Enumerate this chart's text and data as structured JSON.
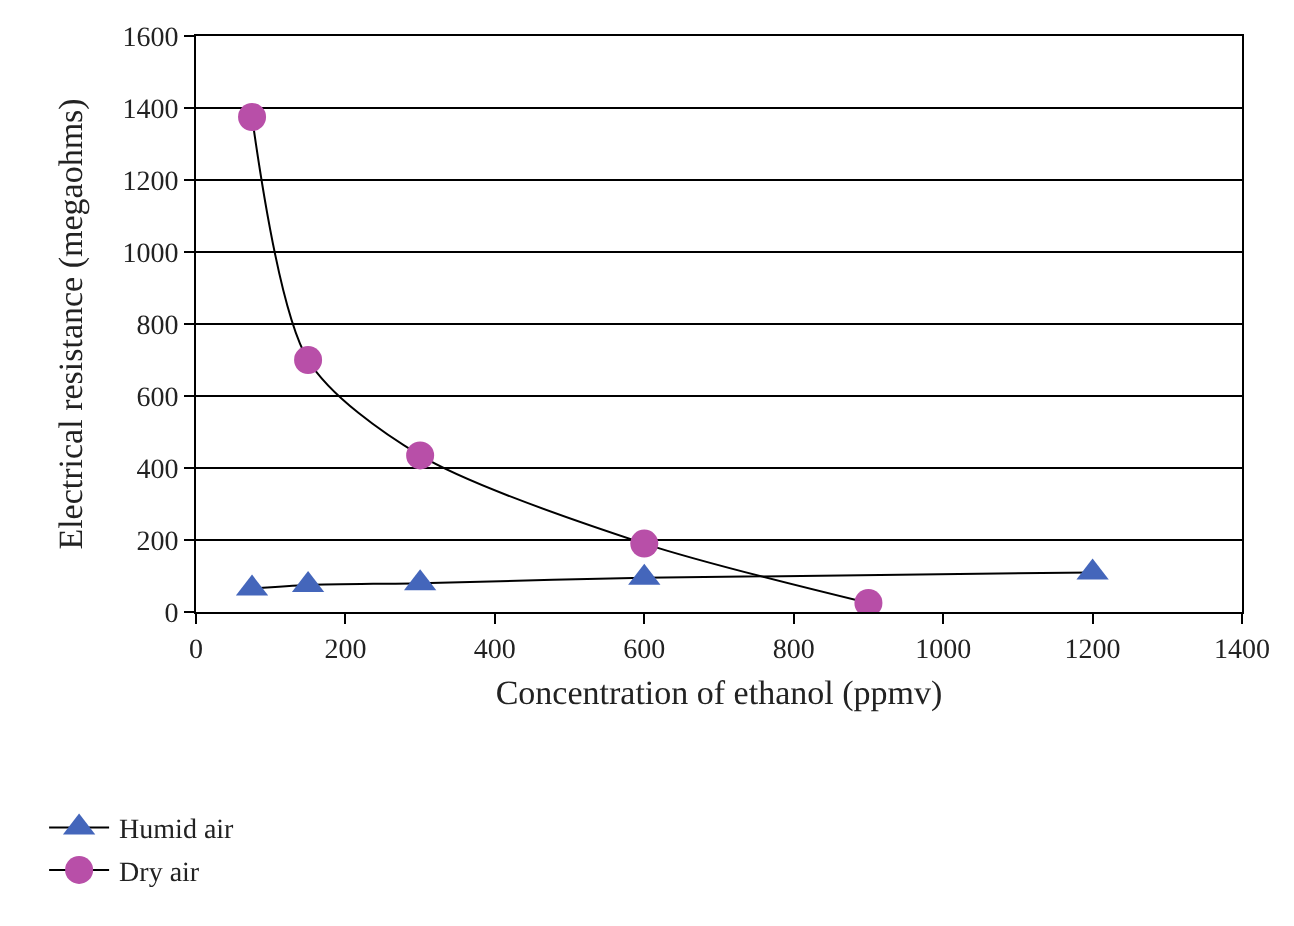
{
  "chart_data": {
    "type": "line",
    "xlabel": "Concentration of ethanol (ppmv)",
    "ylabel": "Electrical resistance (megaohms)",
    "series": [
      {
        "name": "Humid air",
        "color": "#4466bb",
        "marker": "triangle",
        "x": [
          75,
          150,
          300,
          600,
          1200
        ],
        "values": [
          65,
          75,
          80,
          95,
          110
        ]
      },
      {
        "name": "Dry air",
        "color": "#b84fa8",
        "marker": "circle",
        "x": [
          75,
          150,
          300,
          600,
          900
        ],
        "values": [
          1375,
          700,
          435,
          190,
          25
        ]
      }
    ],
    "xlim": [
      0,
      1400
    ],
    "xticks": [
      0,
      200,
      400,
      600,
      800,
      1000,
      1200,
      1400
    ],
    "ylim": [
      0,
      1600
    ],
    "yticks": [
      0,
      200,
      400,
      600,
      800,
      1000,
      1200,
      1400,
      1600
    ],
    "grid": "y",
    "legend": "bottom left",
    "line_style": "solid"
  }
}
